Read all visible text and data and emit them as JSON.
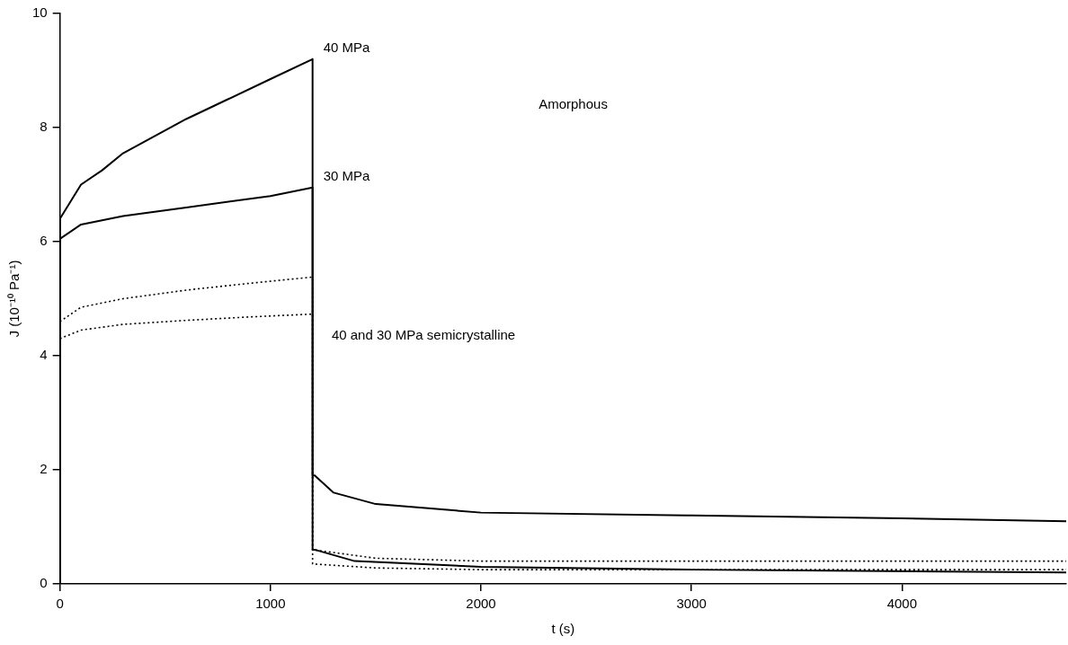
{
  "chart_data": {
    "type": "line",
    "xlabel": "t (s)",
    "ylabel": "J (10⁻¹⁰ Pa⁻¹)",
    "xlim": [
      0,
      4780
    ],
    "xticks": [
      0,
      1000,
      2000,
      3000,
      4000
    ],
    "ylim": [
      0,
      10
    ],
    "yticks": [
      0,
      2,
      4,
      6,
      8,
      10
    ],
    "grid": false,
    "legend": false,
    "marker": "none",
    "series": [
      {
        "name": "40 MPa",
        "color": "#000000",
        "line_style": "solid",
        "x": [
          0,
          0,
          50,
          100,
          200,
          300,
          400,
          600,
          800,
          1000,
          1200,
          1200,
          1210,
          1300,
          1500,
          2000,
          3000,
          4000,
          4780
        ],
        "values": [
          0,
          6.4,
          6.7,
          7.0,
          7.25,
          7.55,
          7.75,
          8.15,
          8.5,
          8.85,
          9.2,
          1.9,
          1.9,
          1.6,
          1.4,
          1.25,
          1.2,
          1.15,
          1.1
        ]
      },
      {
        "name": "30 MPa",
        "color": "#000000",
        "line_style": "solid",
        "x": [
          0,
          0,
          100,
          300,
          600,
          1000,
          1200,
          1200,
          1210,
          1400,
          2000,
          3000,
          4780
        ],
        "values": [
          0,
          6.05,
          6.3,
          6.45,
          6.6,
          6.8,
          6.95,
          0.6,
          0.6,
          0.4,
          0.3,
          0.25,
          0.2
        ]
      },
      {
        "color": "#000000",
        "line_style": "dotted",
        "x": [
          0,
          100,
          300,
          600,
          900,
          1200,
          1200,
          1500,
          2000,
          3000,
          4780
        ],
        "values": [
          4.6,
          4.85,
          5.0,
          5.15,
          5.27,
          5.38,
          0.6,
          0.45,
          0.4,
          0.4,
          0.4
        ]
      },
      {
        "color": "#000000",
        "line_style": "dotted",
        "x": [
          0,
          100,
          300,
          600,
          900,
          1200,
          1200,
          1500,
          2000,
          3000,
          4780
        ],
        "values": [
          4.3,
          4.45,
          4.55,
          4.62,
          4.68,
          4.73,
          0.35,
          0.28,
          0.25,
          0.25,
          0.25
        ]
      }
    ],
    "annotations": [
      "40 and 30 MPa semicrystalline",
      "Amorphous"
    ]
  }
}
